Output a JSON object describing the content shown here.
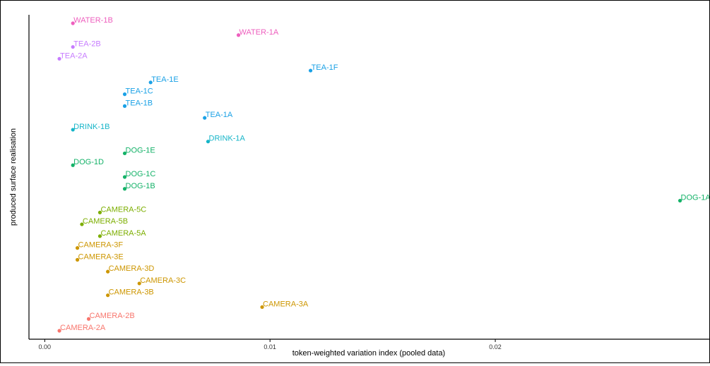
{
  "chart_data": {
    "type": "scatter",
    "title": "",
    "xlabel": "token-weighted variation index (pooled data)",
    "ylabel": "produced surface realisation",
    "x_ticks": [
      0.0,
      0.01,
      0.02
    ],
    "x_tick_labels": [
      "0.00",
      "0.01",
      "0.02"
    ],
    "xlim": [
      -0.0007,
      0.0295
    ],
    "y_axis": "categorical (no tick labels)",
    "grid": false,
    "legend": "none",
    "colors": {
      "WATER": "#ee5fbe",
      "TEA2": "#c77cff",
      "TEA1": "#1aa1e6",
      "DRINK": "#16b5c8",
      "DOG": "#14b268",
      "CAMERA5": "#7cae00",
      "CAMERA3": "#cd9600",
      "CAMERA2": "#f8766d"
    },
    "points": [
      {
        "label": "WATER-1B",
        "x": 0.00125,
        "color": "#ee5fbe"
      },
      {
        "label": "WATER-1A",
        "x": 0.0086,
        "color": "#ee5fbe"
      },
      {
        "label": "TEA-2B",
        "x": 0.00125,
        "color": "#c77cff"
      },
      {
        "label": "TEA-2A",
        "x": 0.00065,
        "color": "#c77cff"
      },
      {
        "label": "TEA-1F",
        "x": 0.0118,
        "color": "#1aa1e6"
      },
      {
        "label": "TEA-1E",
        "x": 0.0047,
        "color": "#1aa1e6"
      },
      {
        "label": "TEA-1C",
        "x": 0.00355,
        "color": "#1aa1e6"
      },
      {
        "label": "TEA-1B",
        "x": 0.00355,
        "color": "#1aa1e6"
      },
      {
        "label": "TEA-1A",
        "x": 0.0071,
        "color": "#1aa1e6"
      },
      {
        "label": "DRINK-1B",
        "x": 0.00125,
        "color": "#16b5c8"
      },
      {
        "label": "DRINK-1A",
        "x": 0.00725,
        "color": "#16b5c8"
      },
      {
        "label": "DOG-1E",
        "x": 0.00355,
        "color": "#14b268"
      },
      {
        "label": "DOG-1D",
        "x": 0.00125,
        "color": "#14b268"
      },
      {
        "label": "DOG-1C",
        "x": 0.00355,
        "color": "#14b268"
      },
      {
        "label": "DOG-1B",
        "x": 0.00355,
        "color": "#14b268"
      },
      {
        "label": "DOG-1A",
        "x": 0.0282,
        "color": "#14b268"
      },
      {
        "label": "CAMERA-5C",
        "x": 0.00245,
        "color": "#7cae00"
      },
      {
        "label": "CAMERA-5B",
        "x": 0.00165,
        "color": "#7cae00"
      },
      {
        "label": "CAMERA-5A",
        "x": 0.00245,
        "color": "#7cae00"
      },
      {
        "label": "CAMERA-3F",
        "x": 0.00145,
        "color": "#cd9600"
      },
      {
        "label": "CAMERA-3E",
        "x": 0.00145,
        "color": "#cd9600"
      },
      {
        "label": "CAMERA-3D",
        "x": 0.0028,
        "color": "#cd9600"
      },
      {
        "label": "CAMERA-3C",
        "x": 0.0042,
        "color": "#cd9600"
      },
      {
        "label": "CAMERA-3B",
        "x": 0.0028,
        "color": "#cd9600"
      },
      {
        "label": "CAMERA-3A",
        "x": 0.00965,
        "color": "#cd9600"
      },
      {
        "label": "CAMERA-2B",
        "x": 0.00195,
        "color": "#f8766d"
      },
      {
        "label": "CAMERA-2A",
        "x": 0.00065,
        "color": "#f8766d"
      }
    ]
  }
}
